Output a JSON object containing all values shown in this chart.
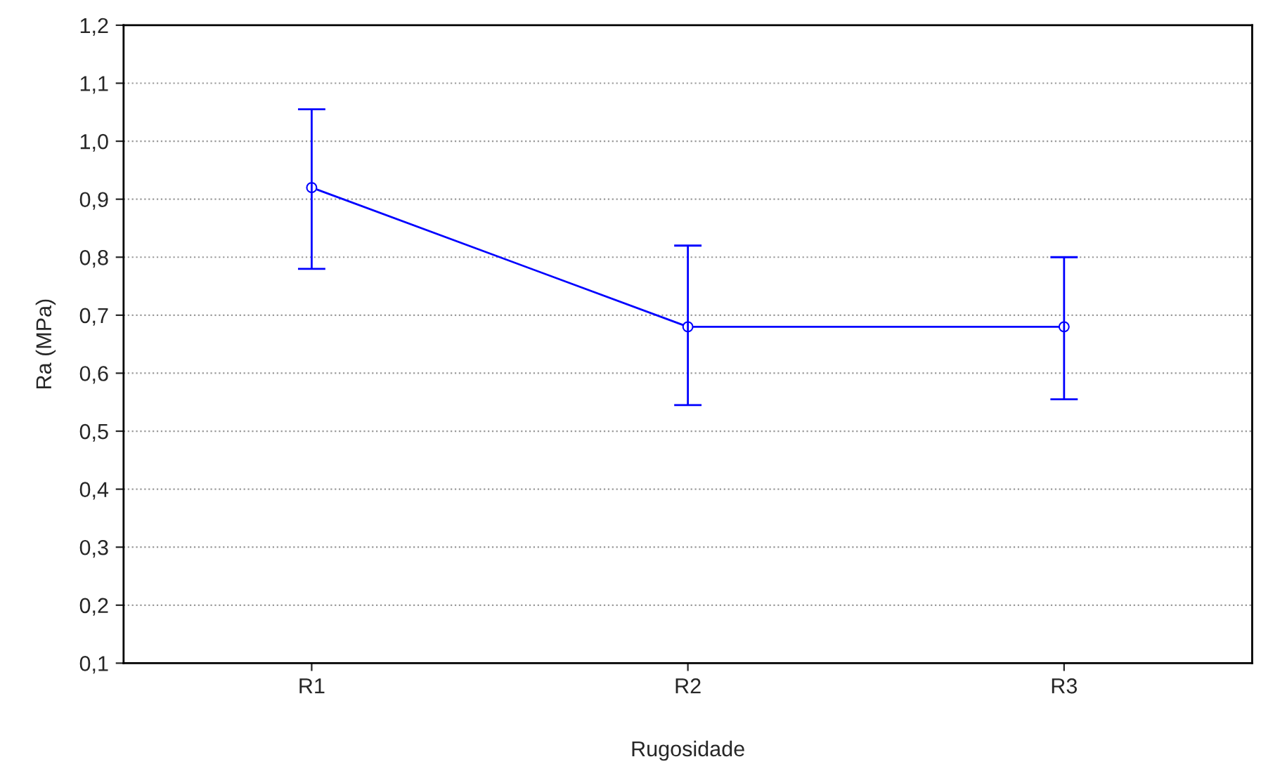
{
  "chart_data": {
    "type": "line",
    "xlabel": "Rugosidade",
    "ylabel": "Ra (MPa)",
    "categories": [
      "R1",
      "R2",
      "R3"
    ],
    "series": [
      {
        "color": "#0000ff",
        "values": [
          0.92,
          0.68,
          0.68
        ],
        "errors": [
          [
            0.78,
            1.055
          ],
          [
            0.545,
            0.82
          ],
          [
            0.555,
            0.8
          ]
        ]
      }
    ],
    "ylim": [
      0.1,
      1.2
    ],
    "yticks": [
      {
        "value": 0.1,
        "label": "0,1"
      },
      {
        "value": 0.2,
        "label": "0,2"
      },
      {
        "value": 0.3,
        "label": "0,3"
      },
      {
        "value": 0.4,
        "label": "0,4"
      },
      {
        "value": 0.5,
        "label": "0,5"
      },
      {
        "value": 0.6,
        "label": "0,6"
      },
      {
        "value": 0.7,
        "label": "0,7"
      },
      {
        "value": 0.8,
        "label": "0,8"
      },
      {
        "value": 0.9,
        "label": "0,9"
      },
      {
        "value": 1.0,
        "label": "1,0"
      },
      {
        "value": 1.1,
        "label": "1,1"
      },
      {
        "value": 1.2,
        "label": "1,2"
      }
    ],
    "grid": "y",
    "marker": "circle",
    "line_style": "solid"
  }
}
